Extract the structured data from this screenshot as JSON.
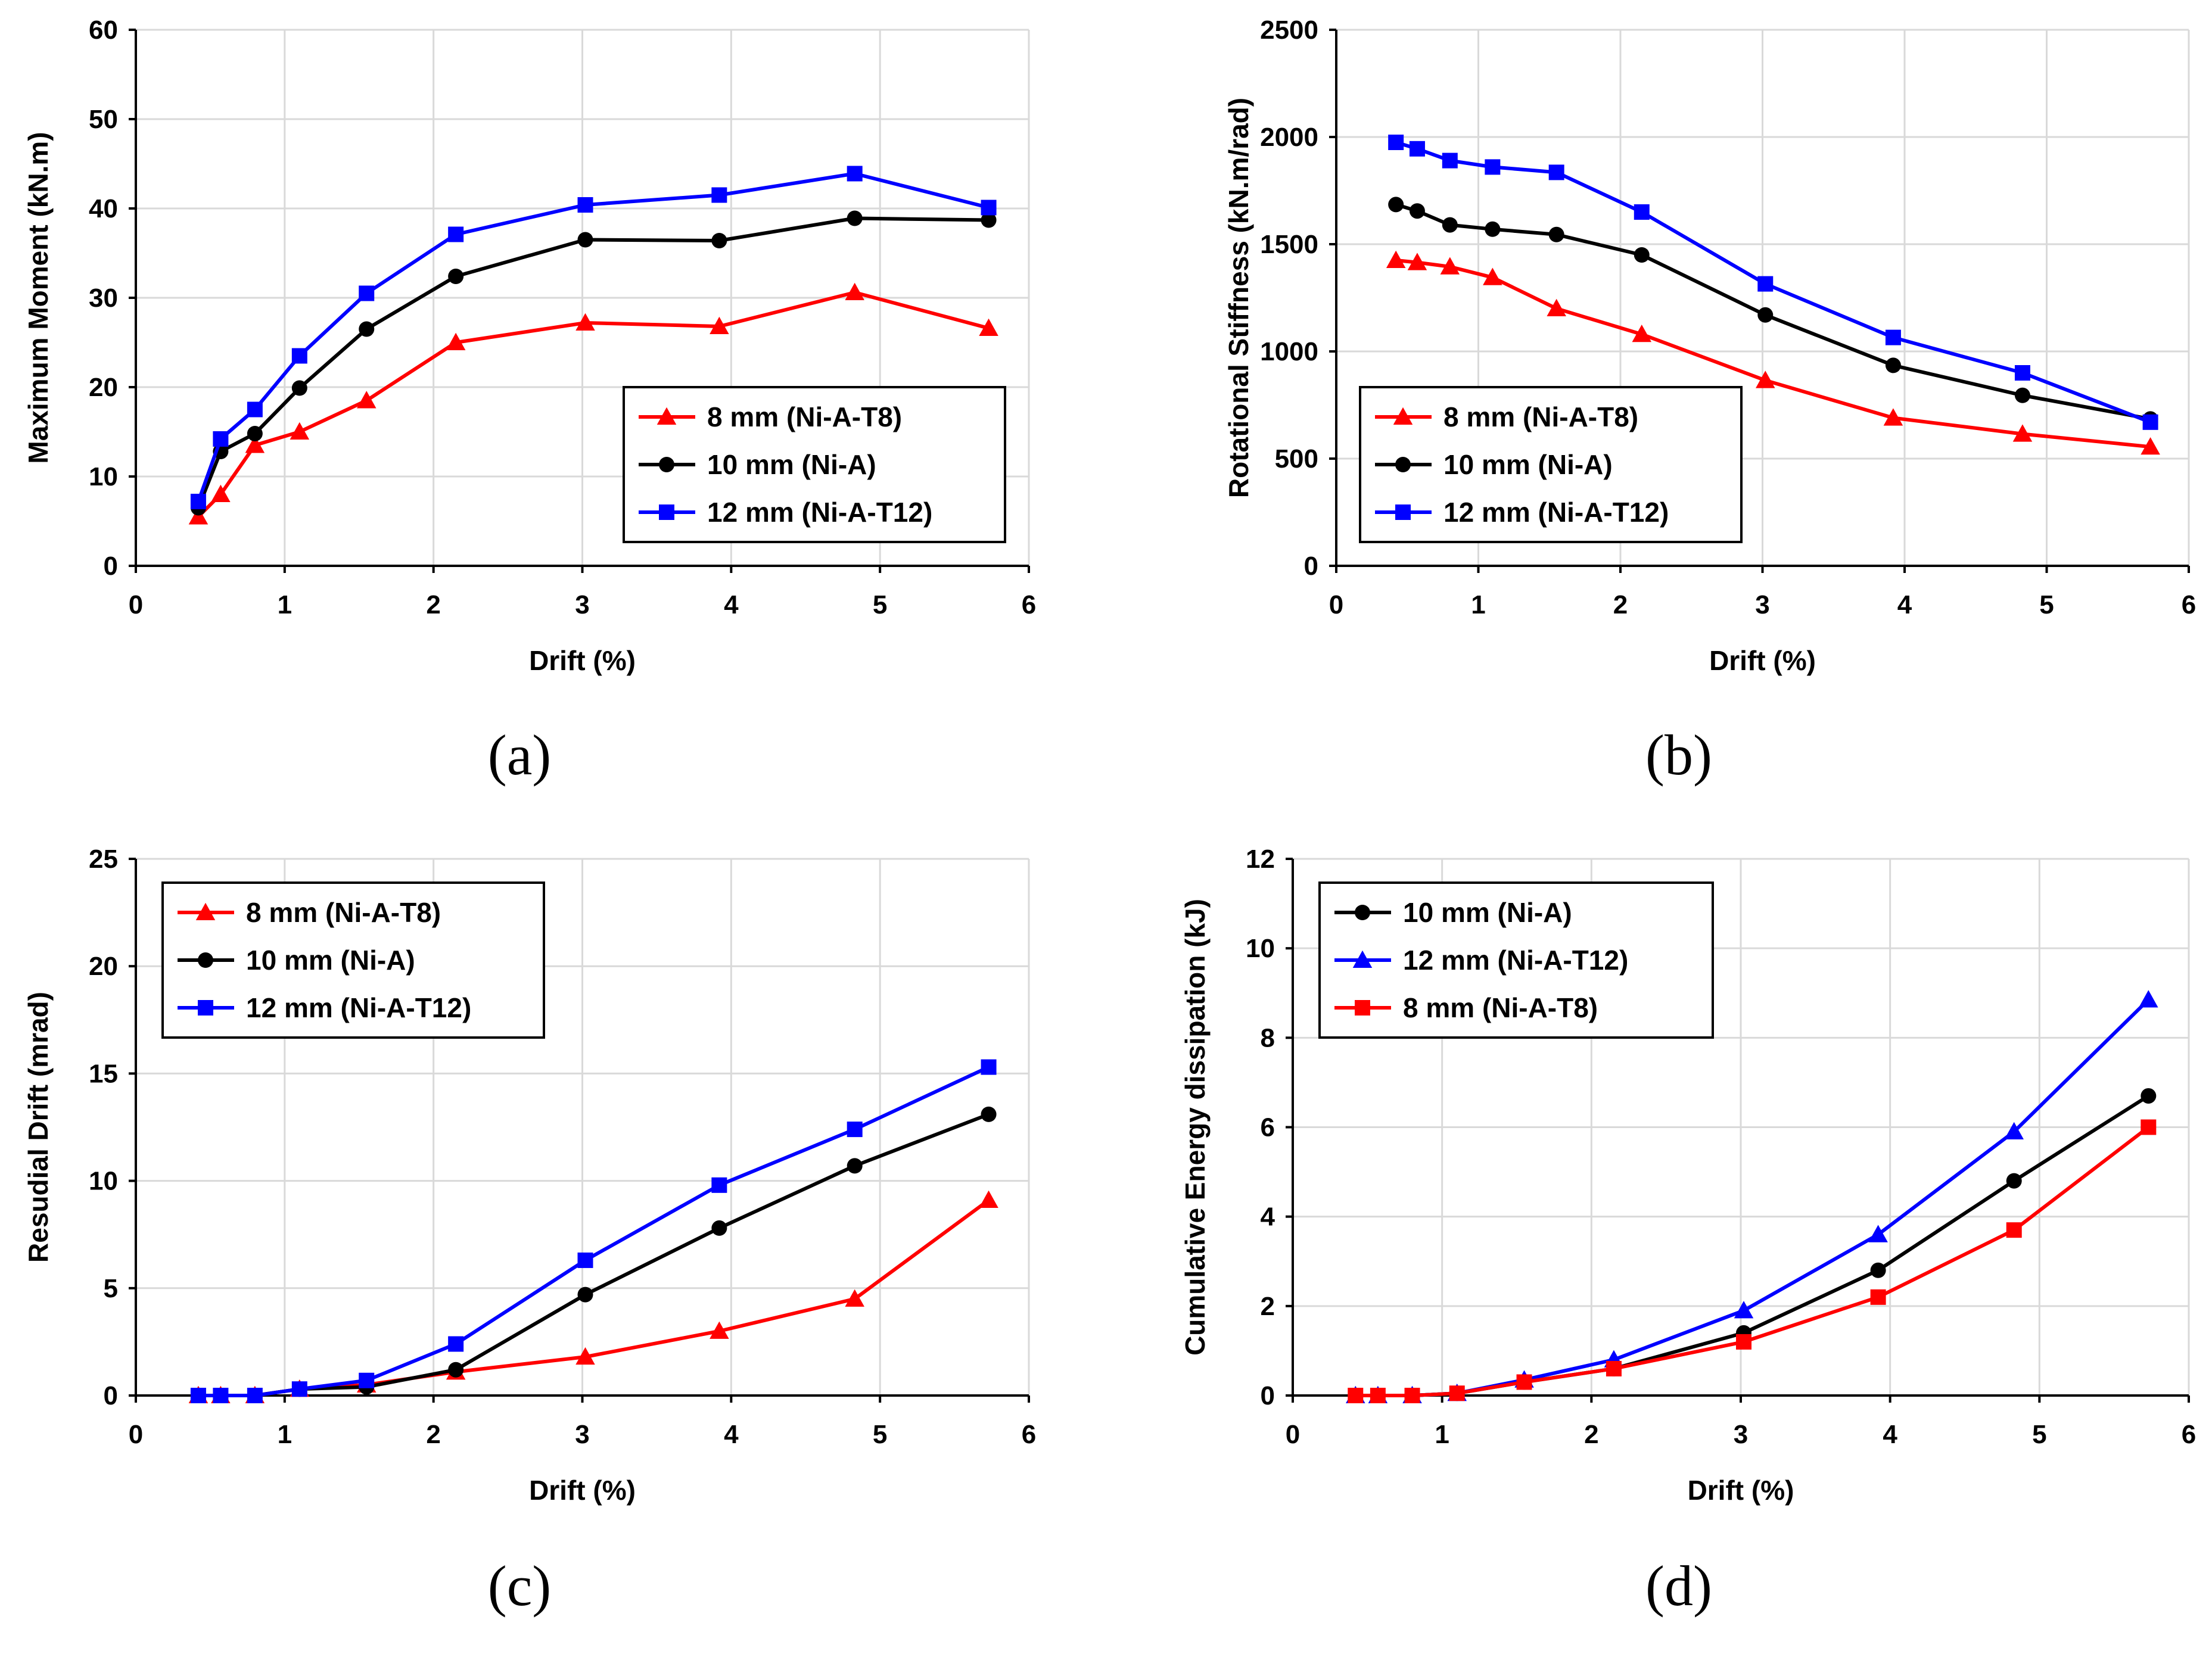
{
  "figure": {
    "background": "#ffffff",
    "grid_color": "#d9d9d9",
    "axis_color": "#000000"
  },
  "chart_data": [
    {
      "caption": "(a)",
      "type": "line",
      "xlabel": "Drift (%)",
      "ylabel": "Maximum Moment (kN.m)",
      "xlim": [
        0,
        6
      ],
      "ylim": [
        0,
        60
      ],
      "xticks": [
        0,
        1,
        2,
        3,
        4,
        5,
        6
      ],
      "yticks": [
        0,
        10,
        20,
        30,
        40,
        50,
        60
      ],
      "grid": true,
      "legend_position": "bottom-right",
      "x": [
        0.42,
        0.57,
        0.8,
        1.1,
        1.55,
        2.15,
        3.02,
        3.92,
        4.83,
        5.73
      ],
      "series": [
        {
          "name": "8 mm (Ni-A-T8)",
          "color": "#ff0000",
          "marker": "triangle",
          "values": [
            5.5,
            8,
            13.5,
            15,
            18.5,
            25,
            27.2,
            26.8,
            30.6,
            26.6
          ]
        },
        {
          "name": "10 mm (Ni-A)",
          "color": "#000000",
          "marker": "circle",
          "values": [
            6.5,
            12.8,
            14.8,
            19.9,
            26.5,
            32.4,
            36.5,
            36.4,
            38.9,
            38.7
          ]
        },
        {
          "name": "12 mm (Ni-A-T12)",
          "color": "#0000ff",
          "marker": "square",
          "values": [
            7.2,
            14.2,
            17.5,
            23.5,
            30.5,
            37.1,
            40.4,
            41.5,
            43.9,
            40.1
          ]
        }
      ]
    },
    {
      "caption": "(b)",
      "type": "line",
      "xlabel": "Drift (%)",
      "ylabel": "Rotational Stiffness (kN.m/rad)",
      "xlim": [
        0,
        6
      ],
      "ylim": [
        0,
        2500
      ],
      "xticks": [
        0,
        1,
        2,
        3,
        4,
        5,
        6
      ],
      "yticks": [
        0,
        500,
        1000,
        1500,
        2000,
        2500
      ],
      "grid": true,
      "legend_position": "bottom-left",
      "x": [
        0.42,
        0.57,
        0.8,
        1.1,
        1.55,
        2.15,
        3.02,
        3.92,
        4.83,
        5.73
      ],
      "series": [
        {
          "name": "8 mm (Ni-A-T8)",
          "color": "#ff0000",
          "marker": "triangle",
          "values": [
            1425,
            1415,
            1395,
            1345,
            1200,
            1080,
            865,
            690,
            615,
            555
          ]
        },
        {
          "name": "10 mm (Ni-A)",
          "color": "#000000",
          "marker": "circle",
          "values": [
            1685,
            1655,
            1590,
            1570,
            1545,
            1450,
            1170,
            935,
            795,
            685
          ]
        },
        {
          "name": "12 mm (Ni-A-T12)",
          "color": "#0000ff",
          "marker": "square",
          "values": [
            1975,
            1945,
            1890,
            1860,
            1835,
            1650,
            1315,
            1065,
            900,
            670
          ]
        }
      ]
    },
    {
      "caption": "(c)",
      "type": "line",
      "xlabel": "Drift (%)",
      "ylabel": "Resudial Drift (mrad)",
      "xlim": [
        0,
        6
      ],
      "ylim": [
        0,
        25
      ],
      "xticks": [
        0,
        1,
        2,
        3,
        4,
        5,
        6
      ],
      "yticks": [
        0,
        5,
        10,
        15,
        20,
        25
      ],
      "grid": true,
      "legend_position": "top-left",
      "x": [
        0.42,
        0.57,
        0.8,
        1.1,
        1.55,
        2.15,
        3.02,
        3.92,
        4.83,
        5.73
      ],
      "series": [
        {
          "name": "8 mm (Ni-A-T8)",
          "color": "#ff0000",
          "marker": "triangle",
          "values": [
            0,
            0,
            0,
            0.3,
            0.5,
            1.1,
            1.8,
            3.0,
            4.5,
            9.1
          ]
        },
        {
          "name": "10 mm (Ni-A)",
          "color": "#000000",
          "marker": "circle",
          "values": [
            0,
            0,
            0,
            0.3,
            0.4,
            1.2,
            4.7,
            7.8,
            10.7,
            13.1
          ]
        },
        {
          "name": "12 mm (Ni-A-T12)",
          "color": "#0000ff",
          "marker": "square",
          "values": [
            0,
            0,
            0,
            0.3,
            0.7,
            2.4,
            6.3,
            9.8,
            12.4,
            15.3
          ]
        }
      ]
    },
    {
      "caption": "(d)",
      "type": "line",
      "xlabel": "Drift (%)",
      "ylabel": "Cumulative Energy dissipation (kJ)",
      "xlim": [
        0,
        6
      ],
      "ylim": [
        0,
        12
      ],
      "xticks": [
        0,
        1,
        2,
        3,
        4,
        5,
        6
      ],
      "yticks": [
        0,
        2,
        4,
        6,
        8,
        10,
        12
      ],
      "grid": true,
      "legend_position": "top-left",
      "x": [
        0.42,
        0.57,
        0.8,
        1.1,
        1.55,
        2.15,
        3.02,
        3.92,
        4.83,
        5.73
      ],
      "series": [
        {
          "name": "10 mm (Ni-A)",
          "color": "#000000",
          "marker": "circle",
          "values": [
            0,
            0,
            0,
            0.05,
            0.3,
            0.6,
            1.4,
            2.8,
            4.8,
            6.7
          ]
        },
        {
          "name": "12 mm (Ni-A-T12)",
          "color": "#0000ff",
          "marker": "triangle",
          "values": [
            0,
            0,
            0,
            0.05,
            0.35,
            0.8,
            1.9,
            3.6,
            5.9,
            8.85
          ]
        },
        {
          "name": "8 mm (Ni-A-T8)",
          "color": "#ff0000",
          "marker": "square",
          "values": [
            0,
            0,
            0,
            0.05,
            0.3,
            0.6,
            1.2,
            2.2,
            3.7,
            6.0
          ]
        }
      ]
    }
  ]
}
